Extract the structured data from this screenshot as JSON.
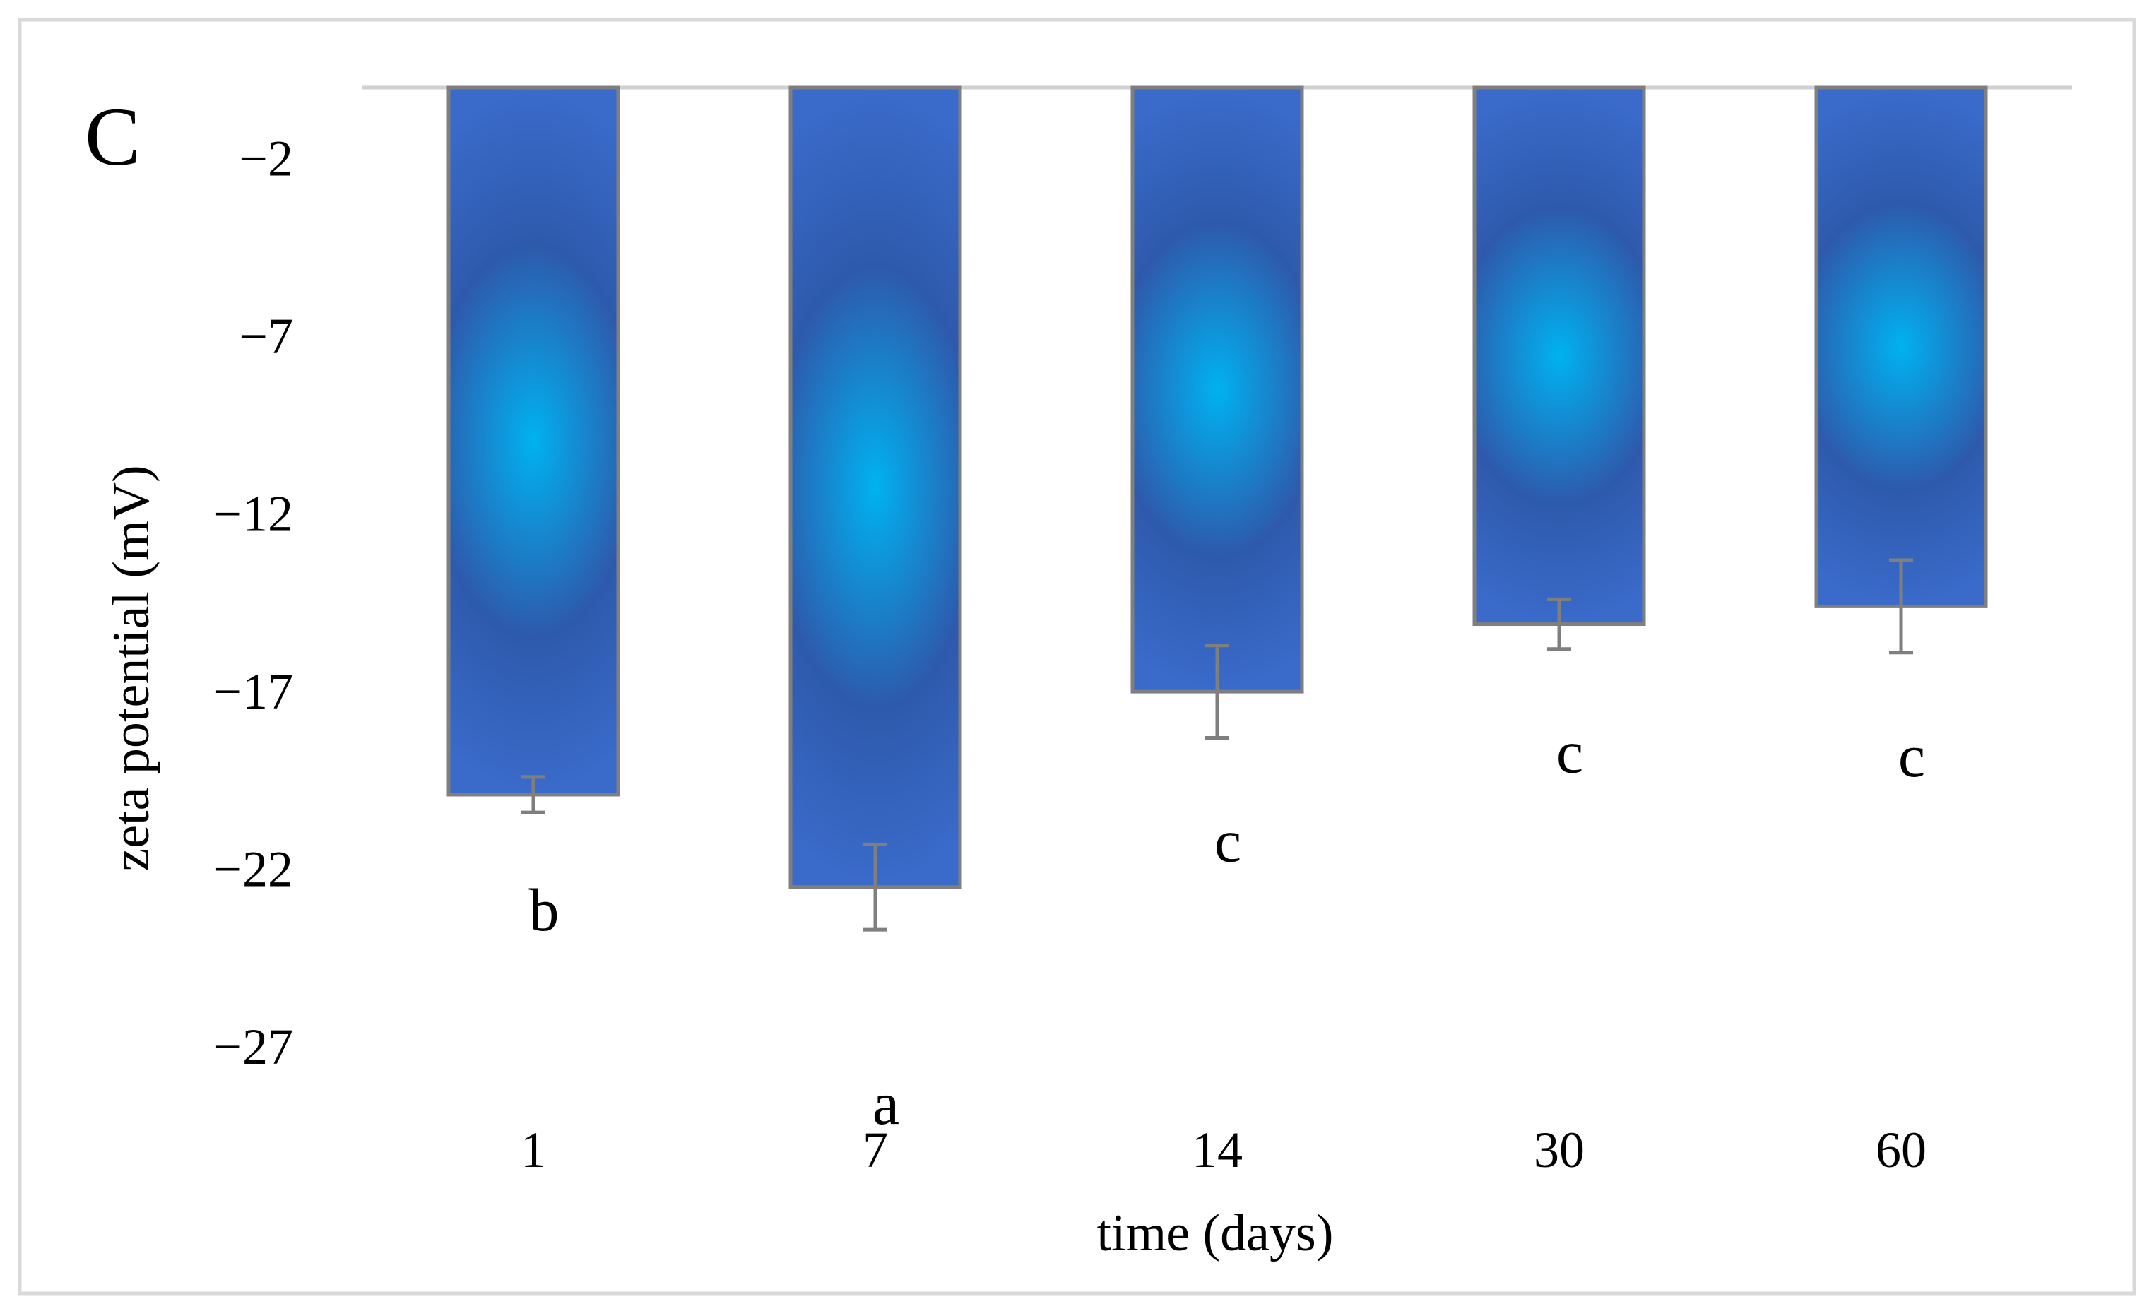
{
  "panel_label": "C",
  "colors": {
    "bar_center": "#00b2f0",
    "bar_mid": "#2e5aac",
    "bar_edge": "#3a6bcb",
    "bar_outline": "#7f7f7f",
    "error_bar": "#7f7f7f",
    "axis_line": "#d0d0d0",
    "frame": "#d9d9d9"
  },
  "chart_data": {
    "type": "bar",
    "title": "",
    "xlabel": "time (days)",
    "ylabel": "zeta potential (mV)",
    "categories": [
      "1",
      "7",
      "14",
      "30",
      "60"
    ],
    "values": [
      -19.9,
      -22.5,
      -17.0,
      -15.1,
      -14.6
    ],
    "errors": [
      0.5,
      1.2,
      1.3,
      0.7,
      1.3
    ],
    "significance": [
      "b",
      "a",
      "c",
      "c",
      "c"
    ],
    "yticks": [
      "-2",
      "-7",
      "-12",
      "-17",
      "-22",
      "-27"
    ],
    "ylim": [
      -29,
      0
    ],
    "grid": false,
    "legend": "none"
  }
}
